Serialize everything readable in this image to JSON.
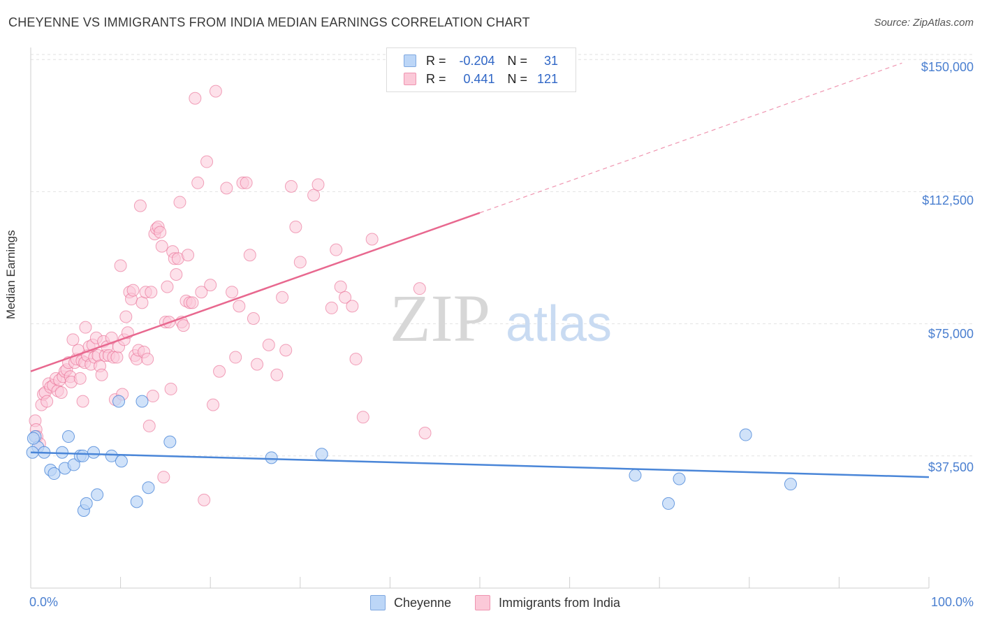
{
  "title": "CHEYENNE VS IMMIGRANTS FROM INDIA MEDIAN EARNINGS CORRELATION CHART",
  "source": "Source: ZipAtlas.com",
  "watermark": {
    "zip": "ZIP",
    "atlas": "atlas"
  },
  "stats": {
    "row1": {
      "r_label": "R =",
      "r_value": "-0.204",
      "n_label": "N =",
      "n_value": "31"
    },
    "row2": {
      "r_label": "R =",
      "r_value": "0.441",
      "n_label": "N =",
      "n_value": "121"
    }
  },
  "legend": {
    "series1": "Cheyenne",
    "series2": "Immigrants from India"
  },
  "colors": {
    "blue": "#4a86d8",
    "blue_fill": "#bcd6f7",
    "pink": "#e8688f",
    "pink_fill": "#fbc9d8",
    "tick_text": "#4a7fd0"
  },
  "chart_data": {
    "type": "scatter",
    "title": "CHEYENNE VS IMMIGRANTS FROM INDIA MEDIAN EARNINGS CORRELATION CHART",
    "xlabel": "",
    "ylabel": "Median Earnings",
    "xlim": [
      0,
      100
    ],
    "ylim": [
      0,
      155000
    ],
    "x_tick_labels": [
      "0.0%",
      "100.0%"
    ],
    "y_ticks": [
      37500,
      75000,
      112500,
      150000
    ],
    "y_tick_labels": [
      "$37,500",
      "$75,000",
      "$112,500",
      "$150,000"
    ],
    "series": [
      {
        "name": "Cheyenne",
        "r": -0.204,
        "n": 31,
        "trend": {
          "x": [
            0,
            100
          ],
          "y": [
            38500,
            31500
          ]
        },
        "points": [
          [
            0.5,
            43000
          ],
          [
            0.8,
            40000
          ],
          [
            1.5,
            38500
          ],
          [
            2.2,
            33500
          ],
          [
            2.6,
            32500
          ],
          [
            3.5,
            38500
          ],
          [
            3.8,
            34000
          ],
          [
            4.2,
            43000
          ],
          [
            4.8,
            35000
          ],
          [
            5.5,
            37500
          ],
          [
            5.8,
            37500
          ],
          [
            5.9,
            22000
          ],
          [
            6.2,
            24000
          ],
          [
            7.0,
            38500
          ],
          [
            7.4,
            26500
          ],
          [
            9.0,
            37500
          ],
          [
            9.8,
            53000
          ],
          [
            10.1,
            36000
          ],
          [
            11.8,
            24500
          ],
          [
            12.4,
            53000
          ],
          [
            13.1,
            28500
          ],
          [
            15.5,
            41500
          ],
          [
            26.8,
            37000
          ],
          [
            32.4,
            38000
          ],
          [
            67.3,
            32000
          ],
          [
            71.0,
            24000
          ],
          [
            72.2,
            31000
          ],
          [
            79.6,
            43500
          ],
          [
            84.6,
            29500
          ],
          [
            0.2,
            38500
          ],
          [
            0.3,
            42500
          ]
        ]
      },
      {
        "name": "Immigrants from India",
        "r": 0.441,
        "n": 121,
        "trend": {
          "x": [
            0,
            50
          ],
          "y": [
            61500,
            106500
          ]
        },
        "trend_extension": {
          "x": [
            50,
            97
          ],
          "y": [
            106500,
            149000
          ]
        },
        "points": [
          [
            0.5,
            47500
          ],
          [
            0.6,
            45000
          ],
          [
            0.7,
            43000
          ],
          [
            1.0,
            41000
          ],
          [
            1.2,
            52000
          ],
          [
            1.4,
            55000
          ],
          [
            1.6,
            55500
          ],
          [
            1.8,
            53000
          ],
          [
            2.0,
            58000
          ],
          [
            2.2,
            57000
          ],
          [
            2.5,
            57500
          ],
          [
            2.8,
            59500
          ],
          [
            3.0,
            56000
          ],
          [
            3.2,
            59000
          ],
          [
            3.4,
            55500
          ],
          [
            3.6,
            60000
          ],
          [
            3.8,
            61500
          ],
          [
            4.0,
            62000
          ],
          [
            4.2,
            64000
          ],
          [
            4.4,
            60000
          ],
          [
            4.5,
            58500
          ],
          [
            4.7,
            70500
          ],
          [
            4.9,
            64000
          ],
          [
            5.1,
            65000
          ],
          [
            5.3,
            67500
          ],
          [
            5.5,
            59500
          ],
          [
            5.7,
            64500
          ],
          [
            5.8,
            53000
          ],
          [
            6.0,
            64000
          ],
          [
            6.1,
            74000
          ],
          [
            6.3,
            66000
          ],
          [
            6.5,
            68500
          ],
          [
            6.7,
            63500
          ],
          [
            6.9,
            69000
          ],
          [
            7.1,
            65500
          ],
          [
            7.3,
            71000
          ],
          [
            7.5,
            66000
          ],
          [
            7.7,
            63000
          ],
          [
            7.9,
            60500
          ],
          [
            8.1,
            70000
          ],
          [
            8.3,
            66000
          ],
          [
            8.5,
            68500
          ],
          [
            8.7,
            66000
          ],
          [
            9.0,
            71000
          ],
          [
            9.2,
            65500
          ],
          [
            9.4,
            53500
          ],
          [
            9.6,
            65500
          ],
          [
            9.8,
            68500
          ],
          [
            10.0,
            91500
          ],
          [
            10.2,
            55000
          ],
          [
            10.4,
            70500
          ],
          [
            10.6,
            77000
          ],
          [
            10.8,
            72500
          ],
          [
            11.0,
            84000
          ],
          [
            11.2,
            82000
          ],
          [
            11.4,
            84500
          ],
          [
            11.6,
            66000
          ],
          [
            11.8,
            65000
          ],
          [
            12.0,
            67500
          ],
          [
            12.2,
            108500
          ],
          [
            12.4,
            81000
          ],
          [
            12.6,
            67000
          ],
          [
            12.8,
            84000
          ],
          [
            13.0,
            65000
          ],
          [
            13.2,
            46000
          ],
          [
            13.4,
            84000
          ],
          [
            13.6,
            54500
          ],
          [
            13.8,
            100500
          ],
          [
            14.0,
            102000
          ],
          [
            14.2,
            102500
          ],
          [
            14.4,
            101000
          ],
          [
            14.6,
            97000
          ],
          [
            14.8,
            31500
          ],
          [
            15.0,
            75500
          ],
          [
            15.2,
            85500
          ],
          [
            15.4,
            75500
          ],
          [
            15.6,
            56500
          ],
          [
            15.8,
            95500
          ],
          [
            16.0,
            93500
          ],
          [
            16.2,
            89000
          ],
          [
            16.4,
            93500
          ],
          [
            16.6,
            109500
          ],
          [
            16.8,
            75500
          ],
          [
            17.0,
            74500
          ],
          [
            17.3,
            81500
          ],
          [
            17.5,
            94500
          ],
          [
            17.7,
            81000
          ],
          [
            18.0,
            81000
          ],
          [
            18.3,
            139000
          ],
          [
            18.6,
            115000
          ],
          [
            19.0,
            84000
          ],
          [
            19.3,
            25000
          ],
          [
            19.6,
            121000
          ],
          [
            20.0,
            86000
          ],
          [
            20.3,
            52000
          ],
          [
            20.6,
            141000
          ],
          [
            21.0,
            61500
          ],
          [
            21.8,
            113500
          ],
          [
            22.4,
            84000
          ],
          [
            22.8,
            65500
          ],
          [
            23.2,
            80000
          ],
          [
            23.6,
            115000
          ],
          [
            24.0,
            115000
          ],
          [
            24.4,
            94500
          ],
          [
            24.8,
            76500
          ],
          [
            25.2,
            63500
          ],
          [
            26.5,
            69000
          ],
          [
            27.4,
            60500
          ],
          [
            28.0,
            82500
          ],
          [
            28.4,
            67500
          ],
          [
            29.0,
            114000
          ],
          [
            29.5,
            102500
          ],
          [
            30.0,
            92500
          ],
          [
            31.5,
            111500
          ],
          [
            32.0,
            114500
          ],
          [
            33.5,
            79500
          ],
          [
            34.0,
            96000
          ],
          [
            34.5,
            85500
          ],
          [
            35.0,
            82500
          ],
          [
            35.8,
            80000
          ],
          [
            36.2,
            65000
          ],
          [
            37.0,
            48500
          ],
          [
            38.0,
            99000
          ],
          [
            43.3,
            85000
          ],
          [
            43.9,
            44000
          ]
        ]
      }
    ]
  }
}
